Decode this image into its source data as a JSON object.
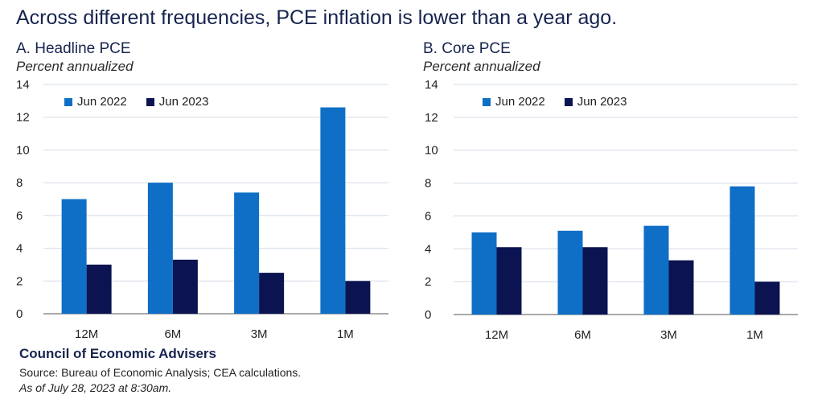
{
  "title": "Across different frequencies, PCE inflation is lower than a year ago.",
  "colors": {
    "jun2022": "#0f6fc6",
    "jun2023": "#0b1451",
    "grid": "#d3dbe6",
    "axis": "#555555"
  },
  "panels": [
    {
      "title": "A. Headline PCE",
      "subtitle": "Percent annualized"
    },
    {
      "title": "B. Core PCE",
      "subtitle": "Percent annualized"
    }
  ],
  "legend": [
    "Jun 2022",
    "Jun 2023"
  ],
  "footer": {
    "org": "Council of Economic Advisers",
    "source": "Source: Bureau of Economic Analysis; CEA calculations.",
    "as_of": "As of July 28, 2023 at 8:30am."
  },
  "chart_data": [
    {
      "type": "bar",
      "title": "A. Headline PCE",
      "ylabel": "Percent annualized",
      "categories": [
        "12M",
        "6M",
        "3M",
        "1M"
      ],
      "ylim": [
        0,
        14
      ],
      "yticks": [
        0,
        2,
        4,
        6,
        8,
        10,
        12,
        14
      ],
      "grid": true,
      "legend_position": "top-left",
      "series": [
        {
          "name": "Jun 2022",
          "values": [
            7.0,
            8.0,
            7.4,
            12.6
          ]
        },
        {
          "name": "Jun 2023",
          "values": [
            3.0,
            3.3,
            2.5,
            2.0
          ]
        }
      ]
    },
    {
      "type": "bar",
      "title": "B. Core PCE",
      "ylabel": "Percent annualized",
      "categories": [
        "12M",
        "6M",
        "3M",
        "1M"
      ],
      "ylim": [
        0,
        14
      ],
      "yticks": [
        0,
        2,
        4,
        6,
        8,
        10,
        12,
        14
      ],
      "grid": true,
      "legend_position": "top-left",
      "series": [
        {
          "name": "Jun 2022",
          "values": [
            5.0,
            5.1,
            5.4,
            7.8
          ]
        },
        {
          "name": "Jun 2023",
          "values": [
            4.1,
            4.1,
            3.3,
            2.0
          ]
        }
      ]
    }
  ]
}
